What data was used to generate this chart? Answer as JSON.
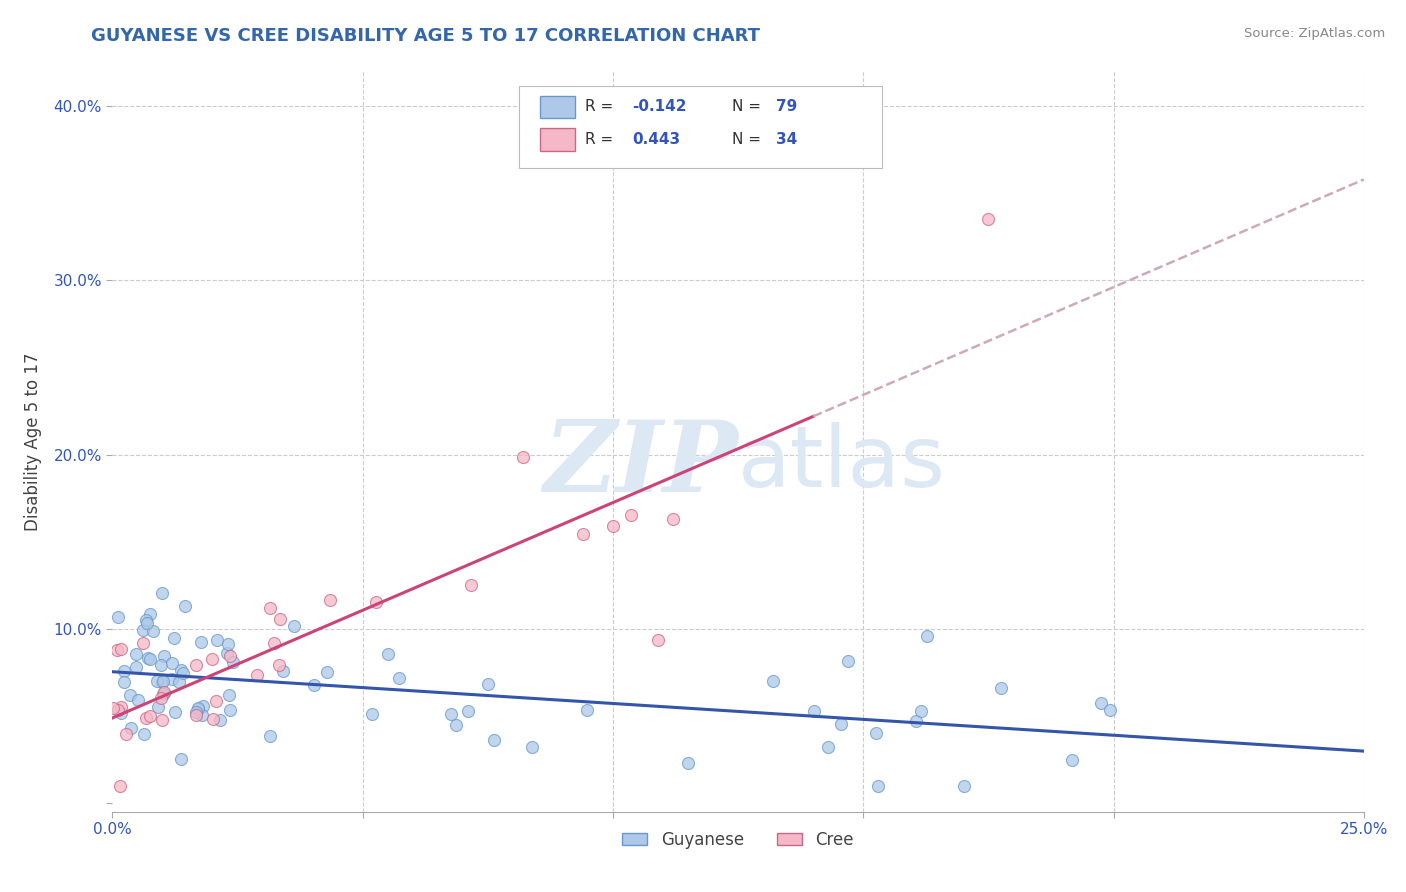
{
  "title": "GUYANESE VS CREE DISABILITY AGE 5 TO 17 CORRELATION CHART",
  "source": "Source: ZipAtlas.com",
  "ylabel": "Disability Age 5 to 17",
  "xlim": [
    0.0,
    0.25
  ],
  "ylim": [
    -0.005,
    0.42
  ],
  "xticks": [
    0.0,
    0.05,
    0.1,
    0.15,
    0.2,
    0.25
  ],
  "xticklabels": [
    "0.0%",
    "",
    "",
    "",
    "",
    "25.0%"
  ],
  "yticks": [
    0.0,
    0.1,
    0.2,
    0.3,
    0.4
  ],
  "yticklabels": [
    "",
    "10.0%",
    "20.0%",
    "30.0%",
    "40.0%"
  ],
  "guyanese_R": -0.142,
  "guyanese_N": 79,
  "cree_R": 0.443,
  "cree_N": 34,
  "guyanese_color": "#adc8e8",
  "guyanese_edge": "#6699cc",
  "cree_color": "#f5b8c8",
  "cree_edge": "#cc6688",
  "trend_guyanese": "#3355aa",
  "trend_cree": "#cc4477",
  "trend_dashed": "#ccaabb",
  "title_color": "#3366aa",
  "title_fontsize": 13,
  "axis_label_color": "#444444",
  "tick_label_color": "#3355bb",
  "legend_label_color": "#3355bb",
  "grid_color": "#cccccc",
  "background_color": "#ffffff",
  "watermark_color": "#dde8f5",
  "source_color": "#888888"
}
